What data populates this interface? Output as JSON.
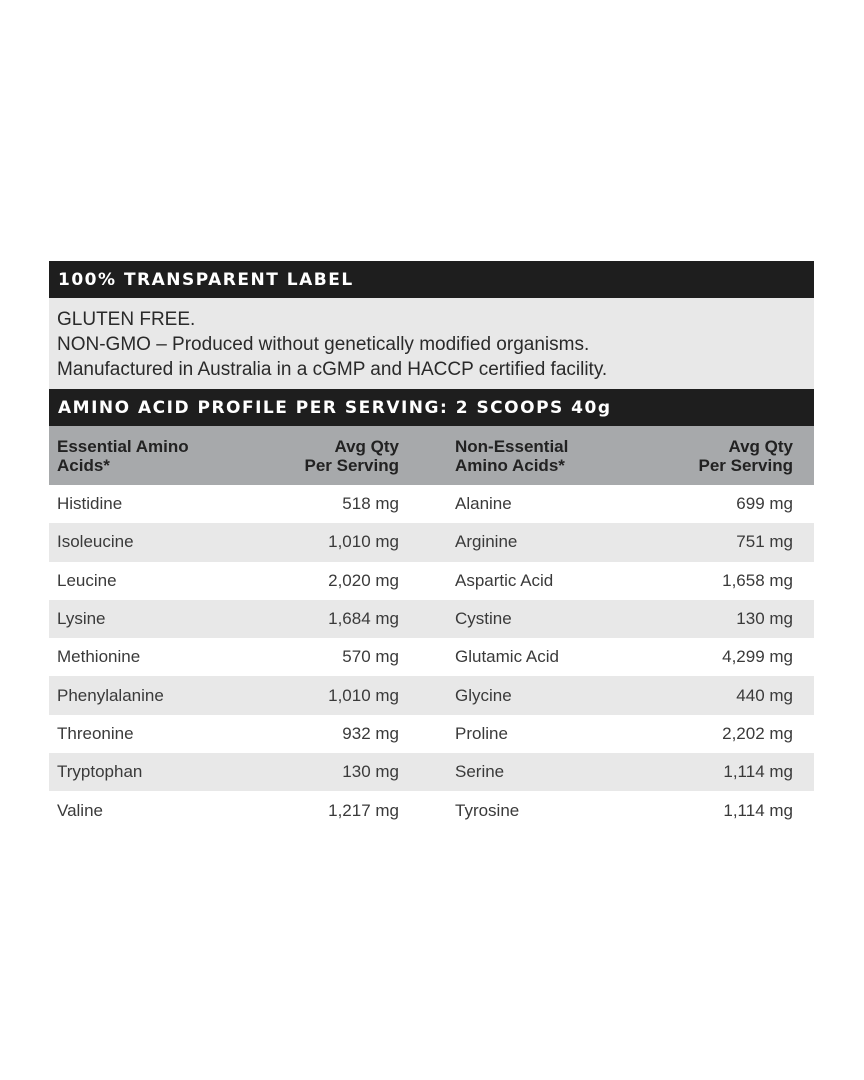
{
  "label_title": "100% TRANSPARENT LABEL",
  "info_lines": [
    "GLUTEN FREE.",
    "NON-GMO – Produced without genetically modified organisms.",
    "Manufactured in Australia in a cGMP and HACCP certified facility."
  ],
  "profile_title": "AMINO ACID PROFILE PER SERVING: 2 SCOOPS 40g",
  "headers": {
    "essential": [
      "Essential Amino",
      "Acids*"
    ],
    "qty": [
      "Avg Qty",
      "Per Serving"
    ],
    "non_essential": [
      "Non-Essential",
      "Amino Acids*"
    ]
  },
  "rows": [
    {
      "e": "Histidine",
      "ev": "518 mg",
      "n": "Alanine",
      "nv": "699 mg"
    },
    {
      "e": "Isoleucine",
      "ev": "1,010 mg",
      "n": "Arginine",
      "nv": "751 mg"
    },
    {
      "e": "Leucine",
      "ev": "2,020 mg",
      "n": "Aspartic Acid",
      "nv": "1,658 mg"
    },
    {
      "e": "Lysine",
      "ev": "1,684 mg",
      "n": "Cystine",
      "nv": "130 mg"
    },
    {
      "e": "Methionine",
      "ev": "570 mg",
      "n": "Glutamic Acid",
      "nv": "4,299 mg"
    },
    {
      "e": "Phenylalanine",
      "ev": "1,010 mg",
      "n": "Glycine",
      "nv": "440 mg"
    },
    {
      "e": "Threonine",
      "ev": "932 mg",
      "n": "Proline",
      "nv": "2,202 mg"
    },
    {
      "e": "Tryptophan",
      "ev": "130 mg",
      "n": "Serine",
      "nv": "1,114 mg"
    },
    {
      "e": "Valine",
      "ev": "1,217 mg",
      "n": "Tyrosine",
      "nv": "1,114 mg"
    }
  ]
}
